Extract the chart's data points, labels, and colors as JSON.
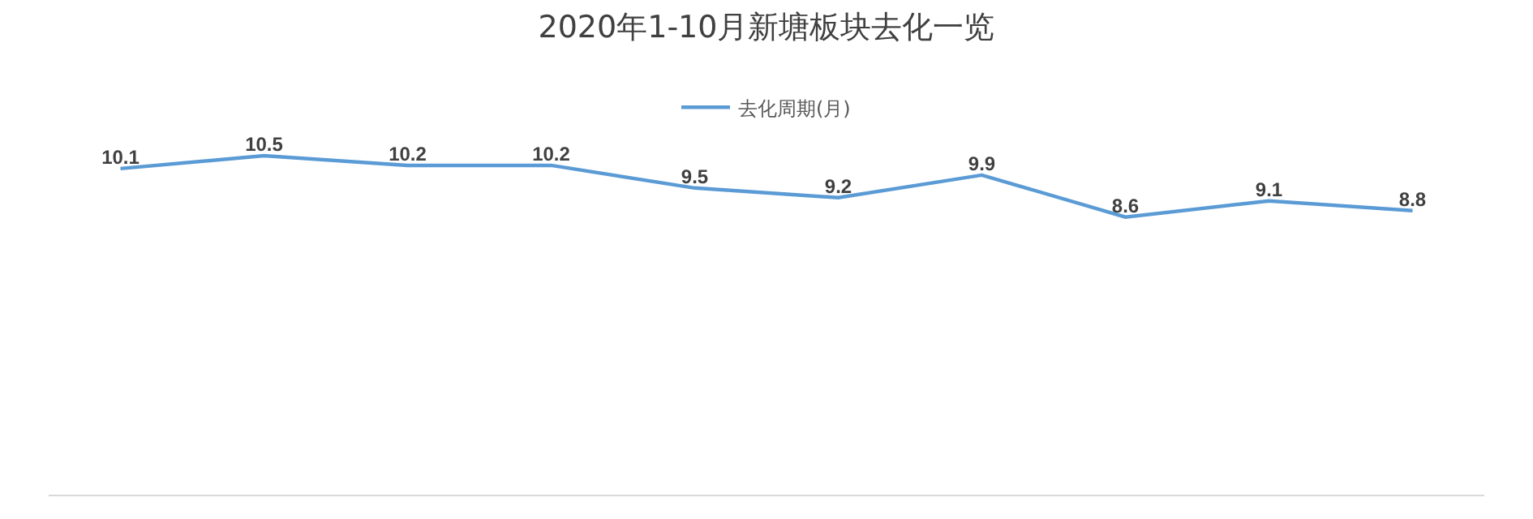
{
  "chart_data": {
    "type": "line",
    "title": "2020年1-10月新塘板块去化一览",
    "categories": [
      null,
      null,
      null,
      null,
      null,
      null,
      null,
      null,
      null,
      null
    ],
    "series": [
      {
        "name": "去化周期(月)",
        "color": "#5b9bd5",
        "values": [
          10.1,
          10.5,
          10.2,
          10.2,
          9.5,
          9.2,
          9.9,
          8.6,
          9.1,
          8.8
        ]
      }
    ],
    "data_labels": true,
    "legend": "top",
    "marker": "none",
    "line_style": "solid"
  }
}
